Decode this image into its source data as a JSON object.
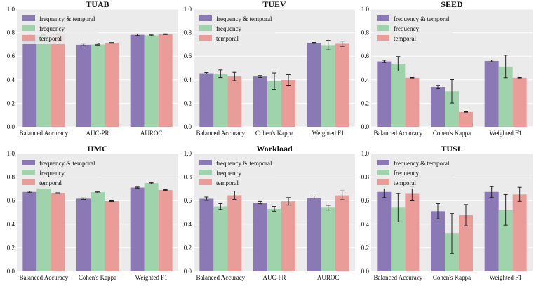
{
  "colors": {
    "frequency_temporal": "#8b79b6",
    "frequency": "#9fd3ac",
    "temporal": "#e99c98",
    "axes_bg": "#ebebeb",
    "grid": "#ffffff",
    "errorbar": "#222222"
  },
  "chart_data": [
    {
      "type": "bar",
      "title": "TUAB",
      "categories": [
        "Balanced Accuracy",
        "AUC-PR",
        "AUROC"
      ],
      "ylim": [
        0,
        1.0
      ],
      "yticks": [
        "0.0",
        "0.2",
        "0.4",
        "0.6",
        "0.8",
        "1.0"
      ],
      "ytick_values": [
        0,
        0.2,
        0.4,
        0.6,
        0.8,
        1.0
      ],
      "legend": [
        "frequency & temporal",
        "frequency",
        "temporal"
      ],
      "legend_position": "top-left",
      "series": [
        {
          "name": "frequency & temporal",
          "values": [
            0.782,
            0.697,
            0.782
          ],
          "errors": [
            0.006,
            0.008,
            0.007
          ]
        },
        {
          "name": "frequency",
          "values": [
            0.779,
            0.699,
            0.777
          ],
          "errors": [
            0.004,
            0.004,
            0.004
          ]
        },
        {
          "name": "temporal",
          "values": [
            0.787,
            0.713,
            0.787
          ],
          "errors": [
            0.003,
            0.003,
            0.003
          ]
        }
      ]
    },
    {
      "type": "bar",
      "title": "TUEV",
      "categories": [
        "Balanced Accuracy",
        "Cohen's Kappa",
        "Weighted F1"
      ],
      "ylim": [
        0,
        1.0
      ],
      "yticks": [
        "0.0",
        "0.2",
        "0.4",
        "0.6",
        "0.8",
        "1.0"
      ],
      "ytick_values": [
        0,
        0.2,
        0.4,
        0.6,
        0.8,
        1.0
      ],
      "legend": [
        "frequency & temporal",
        "frequency",
        "temporal"
      ],
      "legend_position": "top-left",
      "series": [
        {
          "name": "frequency & temporal",
          "values": [
            0.455,
            0.428,
            0.713
          ],
          "errors": [
            0.006,
            0.008,
            0.004
          ]
        },
        {
          "name": "frequency",
          "values": [
            0.451,
            0.388,
            0.694
          ],
          "errors": [
            0.032,
            0.07,
            0.04
          ]
        },
        {
          "name": "temporal",
          "values": [
            0.428,
            0.399,
            0.706
          ],
          "errors": [
            0.035,
            0.045,
            0.022
          ]
        }
      ]
    },
    {
      "type": "bar",
      "title": "SEED",
      "categories": [
        "Balanced Accuracy",
        "Cohen's Kappa",
        "Weighted F1"
      ],
      "ylim": [
        0,
        1.0
      ],
      "yticks": [
        "0.0",
        "0.2",
        "0.4",
        "0.6",
        "0.8",
        "1.0"
      ],
      "ytick_values": [
        0,
        0.2,
        0.4,
        0.6,
        0.8,
        1.0
      ],
      "legend": [
        "frequency & temporal",
        "frequency",
        "temporal"
      ],
      "legend_position": "top-left",
      "series": [
        {
          "name": "frequency & temporal",
          "values": [
            0.556,
            0.339,
            0.56
          ],
          "errors": [
            0.01,
            0.014,
            0.008
          ]
        },
        {
          "name": "frequency",
          "values": [
            0.535,
            0.302,
            0.513
          ],
          "errors": [
            0.062,
            0.1,
            0.095
          ]
        },
        {
          "name": "temporal",
          "values": [
            0.418,
            0.126,
            0.418
          ],
          "errors": [
            0.002,
            0.002,
            0.002
          ]
        }
      ]
    },
    {
      "type": "bar",
      "title": "HMC",
      "categories": [
        "Balanced Accuracy",
        "Cohen's Kappa",
        "Weighted F1"
      ],
      "ylim": [
        0,
        1.0
      ],
      "yticks": [
        "0.0",
        "0.2",
        "0.4",
        "0.6",
        "0.8",
        "1.0"
      ],
      "ytick_values": [
        0,
        0.2,
        0.4,
        0.6,
        0.8,
        1.0
      ],
      "legend": [
        "frequency & temporal",
        "frequency",
        "temporal"
      ],
      "legend_position": "top-left",
      "series": [
        {
          "name": "frequency & temporal",
          "values": [
            0.674,
            0.617,
            0.711
          ],
          "errors": [
            0.006,
            0.006,
            0.004
          ]
        },
        {
          "name": "frequency",
          "values": [
            0.727,
            0.672,
            0.749
          ],
          "errors": [
            0.005,
            0.005,
            0.005
          ]
        },
        {
          "name": "temporal",
          "values": [
            0.664,
            0.595,
            0.69
          ],
          "errors": [
            0.003,
            0.003,
            0.003
          ]
        }
      ]
    },
    {
      "type": "bar",
      "title": "Workload",
      "categories": [
        "Balanced Accuracy",
        "AUC-PR",
        "AUROC"
      ],
      "ylim": [
        0,
        1.0
      ],
      "yticks": [
        "0.0",
        "0.2",
        "0.4",
        "0.6",
        "0.8",
        "1.0"
      ],
      "ytick_values": [
        0,
        0.2,
        0.4,
        0.6,
        0.8,
        1.0
      ],
      "legend": [
        "frequency & temporal",
        "frequency",
        "temporal"
      ],
      "legend_position": "top-left",
      "series": [
        {
          "name": "frequency & temporal",
          "values": [
            0.616,
            0.583,
            0.622
          ],
          "errors": [
            0.015,
            0.01,
            0.018
          ]
        },
        {
          "name": "frequency",
          "values": [
            0.55,
            0.53,
            0.54
          ],
          "errors": [
            0.025,
            0.02,
            0.02
          ]
        },
        {
          "name": "temporal",
          "values": [
            0.646,
            0.594,
            0.645
          ],
          "errors": [
            0.035,
            0.032,
            0.038
          ]
        }
      ]
    },
    {
      "type": "bar",
      "title": "TUSL",
      "categories": [
        "Balanced Accuracy",
        "Cohen's Kappa",
        "Weighted F1"
      ],
      "ylim": [
        0,
        1.0
      ],
      "yticks": [
        "0.0",
        "0.2",
        "0.4",
        "0.6",
        "0.8",
        "1.0"
      ],
      "ytick_values": [
        0,
        0.2,
        0.4,
        0.6,
        0.8,
        1.0
      ],
      "legend": [
        "frequency & temporal",
        "frequency",
        "temporal"
      ],
      "legend_position": "top-left",
      "series": [
        {
          "name": "frequency & temporal",
          "values": [
            0.674,
            0.51,
            0.674
          ],
          "errors": [
            0.048,
            0.065,
            0.045
          ]
        },
        {
          "name": "frequency",
          "values": [
            0.54,
            0.32,
            0.522
          ],
          "errors": [
            0.12,
            0.17,
            0.13
          ]
        },
        {
          "name": "temporal",
          "values": [
            0.658,
            0.476,
            0.653
          ],
          "errors": [
            0.06,
            0.09,
            0.06
          ]
        }
      ]
    }
  ]
}
